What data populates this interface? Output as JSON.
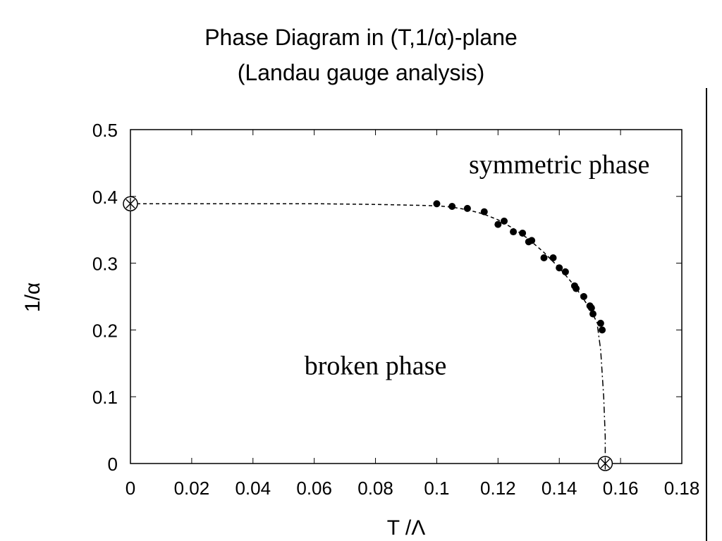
{
  "page": {
    "title_line1": "Phase Diagram in (T,1/α)-plane",
    "title_line2": "(Landau gauge analysis)"
  },
  "chart_data": {
    "type": "scatter",
    "xlabel": "T /Λ",
    "ylabel": "1/α",
    "xlim": [
      0,
      0.18
    ],
    "ylim": [
      0,
      0.5
    ],
    "x_ticks": [
      "0",
      "0.02",
      "0.04",
      "0.06",
      "0.08",
      "0.1",
      "0.12",
      "0.14",
      "0.16",
      "0.18"
    ],
    "y_ticks": [
      "0",
      "0.1",
      "0.2",
      "0.3",
      "0.4",
      "0.5"
    ],
    "grid": false,
    "annotations": [
      {
        "text": "symmetric phase",
        "x": 0.14,
        "y": 0.447
      },
      {
        "text": "broken phase",
        "x": 0.08,
        "y": 0.146
      }
    ],
    "points": {
      "x": [
        0.1,
        0.105,
        0.11,
        0.1155,
        0.12,
        0.122,
        0.125,
        0.128,
        0.13,
        0.131,
        0.135,
        0.138,
        0.14,
        0.142,
        0.145,
        0.1455,
        0.148,
        0.15,
        0.1505,
        0.151,
        0.1535,
        0.154
      ],
      "y": [
        0.389,
        0.385,
        0.382,
        0.377,
        0.358,
        0.363,
        0.347,
        0.345,
        0.332,
        0.334,
        0.308,
        0.308,
        0.293,
        0.287,
        0.266,
        0.262,
        0.25,
        0.236,
        0.233,
        0.224,
        0.21,
        0.2
      ]
    },
    "special_points": [
      {
        "x": 0.0,
        "y": 0.389
      },
      {
        "x": 0.155,
        "y": 0.0
      }
    ],
    "curves": [
      {
        "style": "dashed",
        "x": [
          0.0,
          0.02,
          0.04,
          0.06,
          0.08,
          0.09,
          0.1,
          0.105,
          0.11,
          0.115,
          0.12,
          0.125,
          0.13,
          0.135,
          0.14,
          0.145,
          0.15,
          0.153
        ],
        "y": [
          0.389,
          0.389,
          0.389,
          0.389,
          0.388,
          0.387,
          0.386,
          0.384,
          0.38,
          0.374,
          0.365,
          0.352,
          0.336,
          0.316,
          0.293,
          0.266,
          0.232,
          0.205
        ]
      },
      {
        "style": "dash-dot",
        "x": [
          0.1525,
          0.1535,
          0.1545,
          0.155,
          0.155
        ],
        "y": [
          0.205,
          0.17,
          0.1,
          0.04,
          0.0
        ]
      }
    ]
  }
}
